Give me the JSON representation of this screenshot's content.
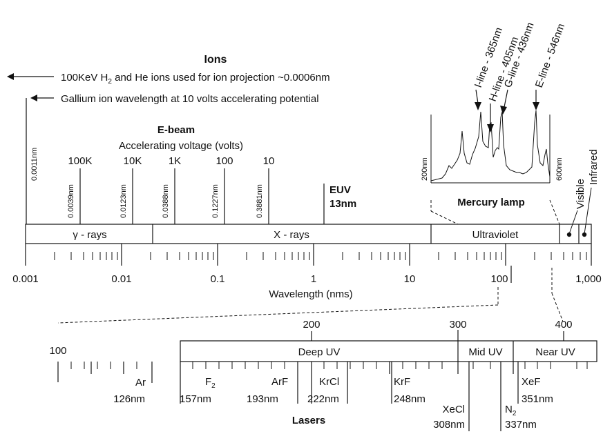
{
  "ions": {
    "title": "Ions",
    "line1_prefix": "100KeV H",
    "line1_sub": "2",
    "line1_suffix": " and He ions used for ion projection ~0.0006nm",
    "line2": "Gallium ion wavelength at 10 volts accelerating potential",
    "wavelength_label": "0.0011nm"
  },
  "ebeam": {
    "title": "E-beam",
    "subtitle": "Accelerating voltage (volts)",
    "voltages": [
      "100K",
      "10K",
      "1K",
      "100",
      "10"
    ],
    "wavelengths": [
      "0.0039nm",
      "0.0123nm",
      "0.0388nm",
      "0.1227nm",
      "0.3881nm"
    ]
  },
  "euv": {
    "label": "EUV",
    "value": "13nm"
  },
  "mercury": {
    "title": "Mercury lamp",
    "axis_min": "200nm",
    "axis_max": "600nm",
    "lines": [
      {
        "name": "I-line - 365nm",
        "nm": 365
      },
      {
        "name": "H-line - 405nm",
        "nm": 405
      },
      {
        "name": "G-line - 436nm",
        "nm": 436
      },
      {
        "name": "E-line - 546nm",
        "nm": 546
      }
    ]
  },
  "main_axis": {
    "bands": [
      "γ - rays",
      "X - rays",
      "Ultraviolet"
    ],
    "visible": "Visible",
    "infrared": "Infrared",
    "tick_labels": [
      "0.001",
      "0.01",
      "0.1",
      "1",
      "10",
      "100",
      "1,000"
    ],
    "xlabel": "Wavelength  (nms)"
  },
  "uv_axis": {
    "bands": [
      "Deep UV",
      "Mid UV",
      "Near UV"
    ],
    "tick_labels": [
      "100",
      "200",
      "300",
      "400"
    ]
  },
  "lasers": {
    "title": "Lasers",
    "items": [
      {
        "name": "Ar",
        "sub": "",
        "value": "126nm"
      },
      {
        "name": "F",
        "sub": "2",
        "value": "157nm"
      },
      {
        "name": "ArF",
        "sub": "",
        "value": "193nm"
      },
      {
        "name": "KrCl",
        "sub": "",
        "value": "222nm"
      },
      {
        "name": "KrF",
        "sub": "",
        "value": "248nm"
      },
      {
        "name": "XeCl",
        "sub": "",
        "value": "308nm"
      },
      {
        "name": "N",
        "sub": "2",
        "value": "337nm"
      },
      {
        "name": "XeF",
        "sub": "",
        "value": "351nm"
      }
    ]
  }
}
